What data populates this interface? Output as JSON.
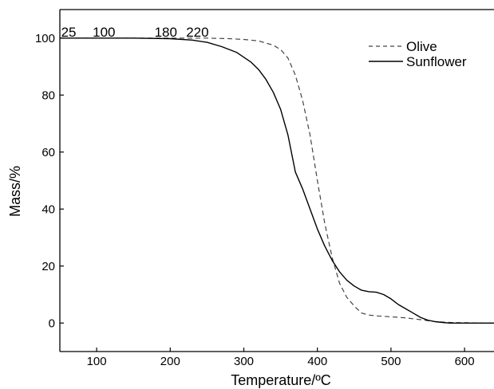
{
  "chart_data": {
    "type": "line",
    "xlabel": "Temperature/ºC",
    "ylabel": "Mass/%",
    "xlim": [
      50,
      640
    ],
    "ylim": [
      -10,
      110
    ],
    "x_ticks": [
      100,
      200,
      300,
      400,
      500,
      600
    ],
    "y_ticks": [
      0,
      20,
      40,
      60,
      80,
      100
    ],
    "grid": false,
    "legend_position": "top-right",
    "annotations": [
      {
        "text": "25",
        "x": 62
      },
      {
        "text": "100",
        "x": 110
      },
      {
        "text": "180",
        "x": 194
      },
      {
        "text": "220",
        "x": 237
      }
    ],
    "series": [
      {
        "name": "Olive",
        "style": "dashed",
        "color": "#444444",
        "x": [
          50,
          150,
          200,
          250,
          280,
          300,
          320,
          340,
          350,
          360,
          370,
          380,
          390,
          400,
          410,
          420,
          430,
          440,
          450,
          460,
          470,
          480,
          500,
          520,
          540,
          560,
          580,
          600,
          620,
          640
        ],
        "y": [
          100,
          100,
          100,
          100,
          99.8,
          99.5,
          99,
          97.5,
          96,
          93,
          87,
          78,
          66,
          50,
          35,
          23,
          14,
          9,
          6,
          3.5,
          2.8,
          2.5,
          2.2,
          1.8,
          1.2,
          0.5,
          0.2,
          0.1,
          0,
          0
        ]
      },
      {
        "name": "Sunflower",
        "style": "solid",
        "color": "#000000",
        "x": [
          50,
          150,
          200,
          230,
          250,
          270,
          290,
          310,
          320,
          330,
          340,
          350,
          360,
          370,
          380,
          390,
          400,
          410,
          420,
          430,
          440,
          450,
          460,
          470,
          480,
          490,
          500,
          510,
          520,
          530,
          540,
          550,
          560,
          570,
          580,
          600,
          620,
          640
        ],
        "y": [
          100,
          100,
          99.8,
          99.3,
          98.5,
          97,
          95,
          91.5,
          89,
          85.5,
          81,
          75,
          66,
          53,
          47,
          40,
          33,
          27,
          22,
          18,
          15,
          13,
          11.5,
          11,
          10.8,
          10,
          8.5,
          6.5,
          5,
          3.5,
          2,
          1,
          0.5,
          0.2,
          0,
          0,
          0,
          0
        ]
      }
    ]
  }
}
